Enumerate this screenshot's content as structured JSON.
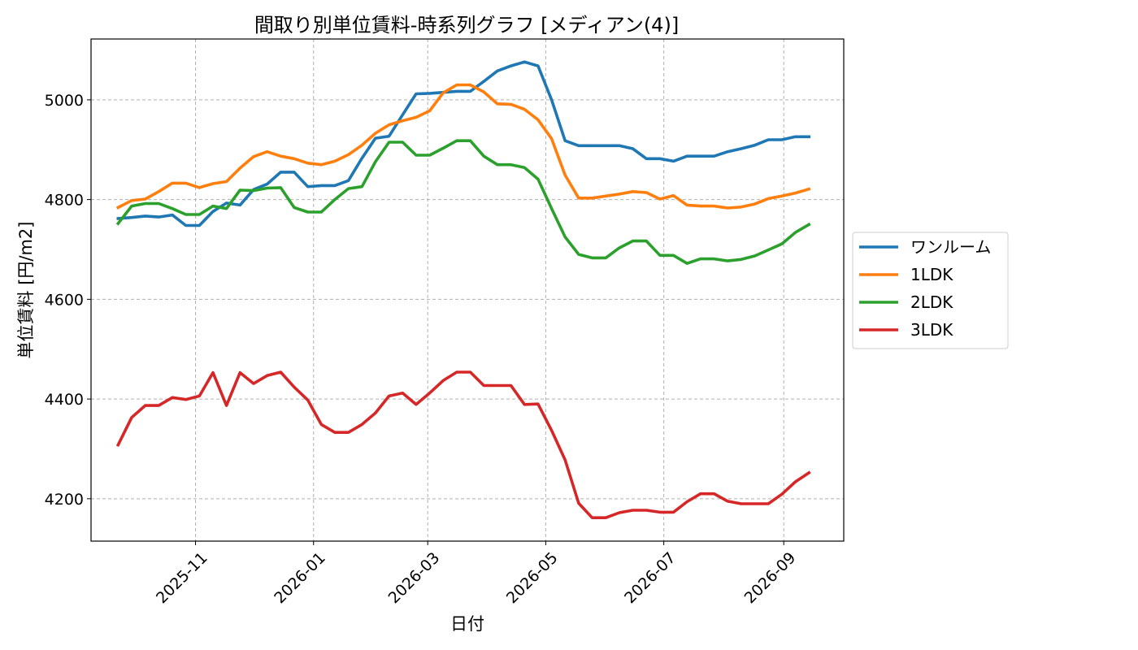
{
  "chart_data": {
    "type": "line",
    "title": "間取り別単位賃料-時系列グラフ [メディアン(4)]",
    "xlabel": "日付",
    "ylabel": "単位賃料 [円/m2]",
    "xlim": [
      "2025-09-08",
      "2026-10-02"
    ],
    "ylim": [
      4115,
      5122
    ],
    "x_ticks": [
      "2025-11",
      "2026-01",
      "2026-03",
      "2026-05",
      "2026-07",
      "2026-09"
    ],
    "y_ticks": [
      4200,
      4400,
      4600,
      4800,
      5000
    ],
    "grid": true,
    "legend_position": "right",
    "x": [
      "2025-09-22",
      "2025-09-29",
      "2025-10-06",
      "2025-10-13",
      "2025-10-20",
      "2025-10-27",
      "2025-11-03",
      "2025-11-10",
      "2025-11-17",
      "2025-11-24",
      "2025-12-01",
      "2025-12-08",
      "2025-12-15",
      "2025-12-22",
      "2025-12-29",
      "2026-01-05",
      "2026-01-12",
      "2026-01-19",
      "2026-01-26",
      "2026-02-02",
      "2026-02-09",
      "2026-02-16",
      "2026-02-23",
      "2026-03-02",
      "2026-03-09",
      "2026-03-16",
      "2026-03-23",
      "2026-03-30",
      "2026-04-06",
      "2026-04-13",
      "2026-04-20",
      "2026-04-27",
      "2026-05-04",
      "2026-05-11",
      "2026-05-18",
      "2026-05-25",
      "2026-06-01",
      "2026-06-08",
      "2026-06-15",
      "2026-06-22",
      "2026-06-29",
      "2026-07-06",
      "2026-07-13",
      "2026-07-20",
      "2026-07-27",
      "2026-08-03",
      "2026-08-10",
      "2026-08-17",
      "2026-08-24",
      "2026-08-31",
      "2026-09-07",
      "2026-09-14"
    ],
    "series": [
      {
        "name": "ワンルーム",
        "color": "#1f77b4",
        "values": [
          4762,
          4764,
          4767,
          4765,
          4769,
          4748,
          4748,
          4776,
          4793,
          4789,
          4820,
          4831,
          4855,
          4855,
          4826,
          4828,
          4828,
          4838,
          4883,
          4923,
          4927,
          4970,
          5012,
          5013,
          5015,
          5017,
          5017,
          5037,
          5058,
          5068,
          5076,
          5068,
          5000,
          4918,
          4908,
          4908,
          4908,
          4908,
          4902,
          4882,
          4882,
          4877,
          4887,
          4887,
          4887,
          4896,
          4902,
          4909,
          4920,
          4920,
          4926,
          4926
        ]
      },
      {
        "name": "1LDK",
        "color": "#ff7f0e",
        "values": [
          4784,
          4798,
          4801,
          4816,
          4833,
          4833,
          4824,
          4832,
          4836,
          4863,
          4886,
          4896,
          4887,
          4882,
          4873,
          4870,
          4877,
          4890,
          4909,
          4933,
          4950,
          4958,
          4965,
          4978,
          5014,
          5030,
          5030,
          5016,
          4992,
          4991,
          4981,
          4960,
          4922,
          4849,
          4803,
          4803,
          4807,
          4811,
          4816,
          4814,
          4801,
          4808,
          4789,
          4787,
          4787,
          4783,
          4785,
          4791,
          4802,
          4807,
          4813,
          4821
        ]
      },
      {
        "name": "2LDK",
        "color": "#2ca02c",
        "values": [
          4752,
          4787,
          4792,
          4792,
          4782,
          4770,
          4770,
          4787,
          4782,
          4819,
          4818,
          4823,
          4824,
          4784,
          4775,
          4775,
          4800,
          4822,
          4826,
          4876,
          4915,
          4915,
          4889,
          4889,
          4903,
          4918,
          4918,
          4887,
          4870,
          4870,
          4864,
          4841,
          4782,
          4725,
          4690,
          4683,
          4683,
          4703,
          4717,
          4717,
          4688,
          4688,
          4672,
          4681,
          4681,
          4677,
          4680,
          4687,
          4699,
          4711,
          4734,
          4750
        ]
      },
      {
        "name": "3LDK",
        "color": "#d62728",
        "values": [
          4308,
          4363,
          4387,
          4387,
          4403,
          4399,
          4406,
          4453,
          4387,
          4453,
          4431,
          4447,
          4454,
          4424,
          4398,
          4349,
          4333,
          4333,
          4349,
          4372,
          4406,
          4412,
          4389,
          4412,
          4437,
          4454,
          4454,
          4427,
          4427,
          4427,
          4389,
          4390,
          4337,
          4278,
          4191,
          4162,
          4162,
          4172,
          4177,
          4177,
          4173,
          4173,
          4194,
          4210,
          4210,
          4195,
          4190,
          4190,
          4190,
          4209,
          4234,
          4252
        ]
      }
    ]
  }
}
